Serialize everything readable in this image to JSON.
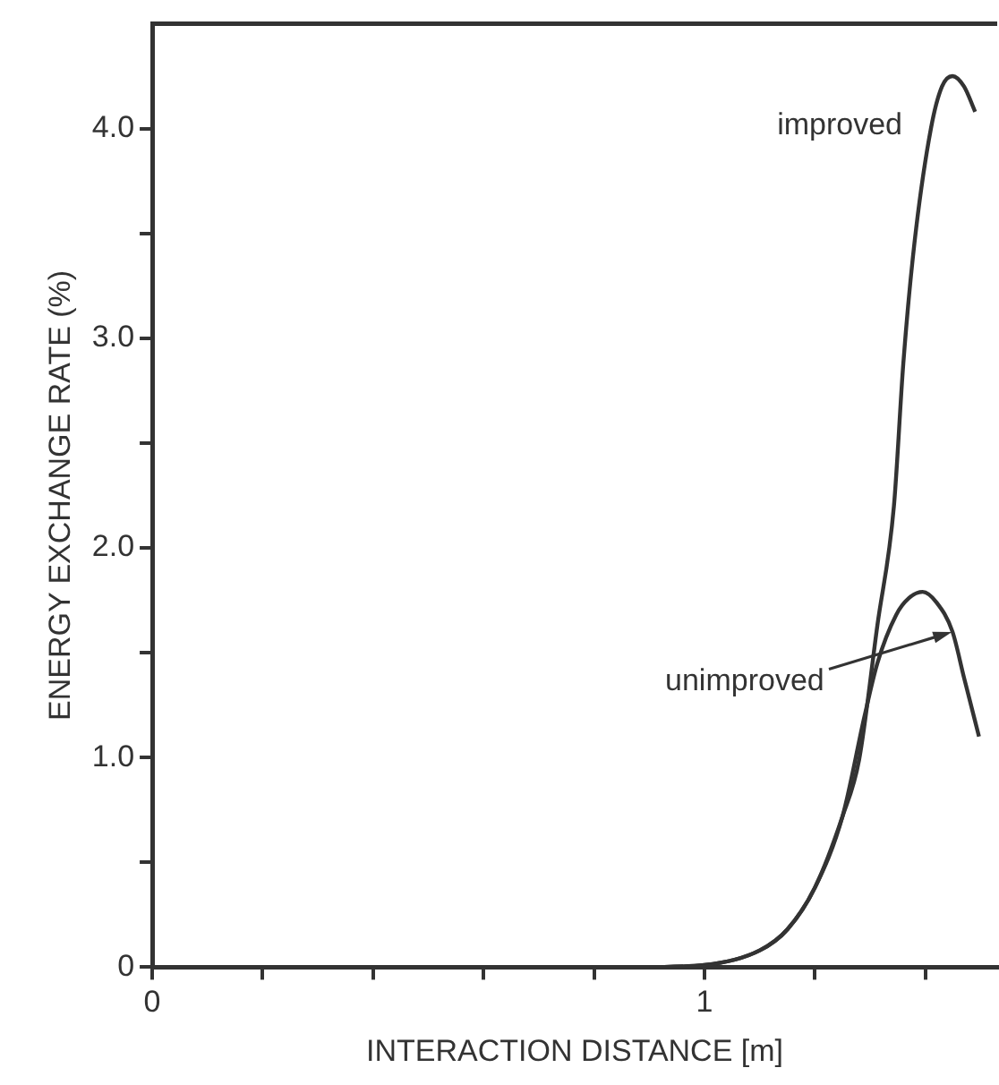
{
  "chart_data": {
    "type": "line",
    "xlabel": "INTERACTION DISTANCE [m]",
    "ylabel": "ENERGY EXCHANGE RATE (%)",
    "xlim": [
      0,
      1.53
    ],
    "ylim": [
      0,
      4.5
    ],
    "xticks": [
      0,
      {
        "value": 0.2,
        "label": null
      },
      {
        "value": 0.4,
        "label": null
      },
      {
        "value": 0.6,
        "label": null
      },
      {
        "value": 0.8,
        "label": null
      },
      1,
      {
        "value": 1.2,
        "label": null
      },
      {
        "value": 1.4,
        "label": null
      }
    ],
    "yticks": [
      0,
      {
        "value": 0.5,
        "label": null
      },
      {
        "value": 1,
        "label": "1.0"
      },
      {
        "value": 1.5,
        "label": null
      },
      {
        "value": 2,
        "label": "2.0"
      },
      {
        "value": 2.5,
        "label": null
      },
      {
        "value": 3,
        "label": "3.0"
      },
      {
        "value": 3.5,
        "label": null
      },
      {
        "value": 4,
        "label": "4.0"
      }
    ],
    "grid": false,
    "legend": false,
    "marker": "none",
    "line_style": "solid",
    "series": [
      {
        "name": "improved",
        "color": "#333333",
        "x": [
          0.9,
          1.0,
          1.1,
          1.15,
          1.2,
          1.25,
          1.28,
          1.313,
          1.343,
          1.36,
          1.38,
          1.41,
          1.43,
          1.449,
          1.47,
          1.49
        ],
        "values": [
          0,
          0.01,
          0.08,
          0.18,
          0.38,
          0.72,
          0.99,
          1.63,
          2.2,
          2.88,
          3.45,
          4.0,
          4.2,
          4.25,
          4.2,
          4.08
        ]
      },
      {
        "name": "unimproved",
        "color": "#333333",
        "x": [
          0.9,
          1.0,
          1.1,
          1.15,
          1.2,
          1.25,
          1.29,
          1.313,
          1.347,
          1.37,
          1.395,
          1.42,
          1.449,
          1.47,
          1.497
        ],
        "values": [
          0,
          0.01,
          0.08,
          0.18,
          0.38,
          0.72,
          1.2,
          1.45,
          1.68,
          1.76,
          1.79,
          1.74,
          1.6,
          1.38,
          1.1
        ]
      }
    ]
  }
}
